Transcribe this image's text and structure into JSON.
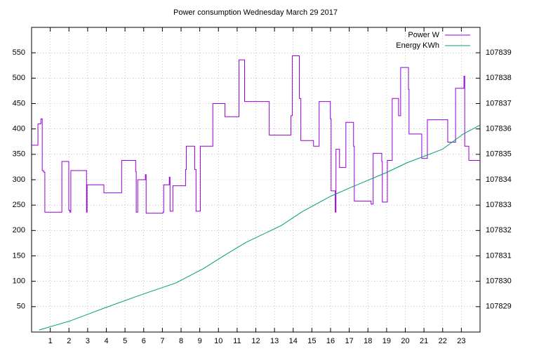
{
  "chart_data": {
    "type": "line",
    "step": true,
    "title": "Power consumption Wednesday March 29 2017",
    "xlim": [
      0,
      24
    ],
    "xticks": [
      1,
      2,
      3,
      4,
      5,
      6,
      7,
      8,
      9,
      10,
      11,
      12,
      13,
      14,
      15,
      16,
      17,
      18,
      19,
      20,
      21,
      22,
      23
    ],
    "ylim": [
      0,
      600
    ],
    "yticks": [
      50,
      100,
      150,
      200,
      250,
      300,
      350,
      400,
      450,
      500,
      550
    ],
    "y2lim": [
      107828,
      107840
    ],
    "y2ticks": [
      107829,
      107830,
      107831,
      107832,
      107833,
      107834,
      107835,
      107836,
      107837,
      107838,
      107839
    ],
    "grid": true,
    "legend": "top-right",
    "series": [
      {
        "name": "Power W",
        "color": "#9400d3",
        "x": [
          0,
          0.34,
          0.5,
          0.57,
          0.64,
          0.71,
          1.62,
          1.99,
          2.05,
          2.1,
          2.9,
          2.94,
          2.97,
          3.87,
          4.82,
          5.57,
          5.6,
          5.68,
          6.09,
          6.13,
          7.03,
          7.07,
          7.37,
          7.41,
          7.56,
          8.24,
          8.28,
          8.73,
          8.8,
          9.03,
          9.7,
          10.35,
          11.1,
          11.4,
          12.72,
          13.88,
          13.95,
          14.33,
          14.41,
          15.09,
          15.39,
          15.99,
          16.03,
          16.25,
          16.29,
          16.48,
          16.82,
          17.23,
          17.27,
          18.17,
          18.28,
          18.74,
          18.77,
          19.04,
          19.3,
          19.64,
          19.75,
          20.17,
          20.2,
          20.88,
          21.18,
          22.27,
          22.69,
          23.14,
          23.18,
          23.4,
          24
        ],
        "values": [
          368,
          410,
          420,
          318,
          315,
          236,
          336,
          240,
          236,
          318,
          318,
          236,
          290,
          274,
          338,
          316,
          236,
          300,
          310,
          234,
          236,
          290,
          305,
          238,
          288,
          320,
          366,
          320,
          238,
          366,
          450,
          424,
          536,
          454,
          388,
          426,
          544,
          460,
          377,
          366,
          454,
          420,
          278,
          236,
          360,
          324,
          413,
          366,
          258,
          252,
          352,
          336,
          256,
          338,
          460,
          426,
          521,
          478,
          390,
          342,
          418,
          374,
          480,
          504,
          366,
          338,
          338
        ]
      },
      {
        "name": "Energy KWh",
        "color": "#009e73",
        "axis": "y2",
        "x": [
          0.4,
          2.07,
          3.95,
          5.83,
          7.71,
          9.2,
          10.34,
          11.47,
          13.35,
          14.48,
          15.98,
          17.1,
          18.98,
          20.1,
          21.99,
          23.1,
          24
        ],
        "values": [
          107828.08,
          107828.44,
          107828.96,
          107829.46,
          107829.93,
          107830.5,
          107831.03,
          107831.53,
          107832.19,
          107832.74,
          107833.34,
          107833.7,
          107834.28,
          107834.67,
          107835.2,
          107835.8,
          107836.15
        ]
      }
    ]
  }
}
